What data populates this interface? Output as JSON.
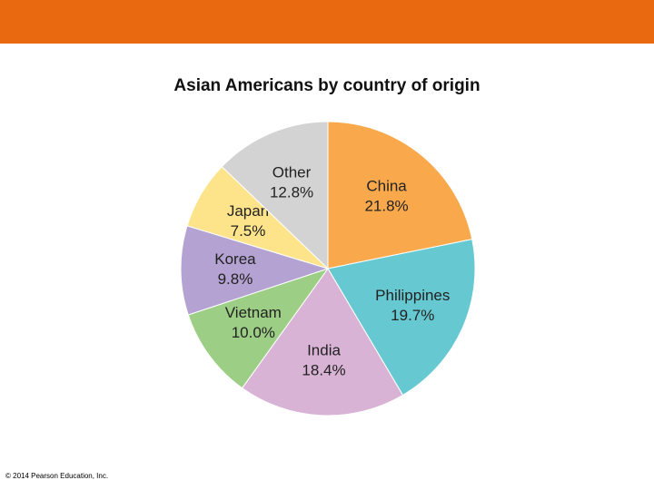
{
  "chart_data": {
    "type": "pie",
    "title": "Asian Americans by country of origin",
    "categories": [
      "China",
      "Philippines",
      "India",
      "Vietnam",
      "Korea",
      "Japan",
      "Other"
    ],
    "values": [
      21.8,
      19.7,
      18.4,
      10.0,
      9.8,
      7.5,
      12.8
    ],
    "value_labels": [
      "21.8%",
      "19.7%",
      "18.4%",
      "10.0%",
      "9.8%",
      "7.5%",
      "12.8%"
    ],
    "colors": [
      "#f9a94b",
      "#66c9d2",
      "#d9b3d6",
      "#9ccf85",
      "#b3a2d2",
      "#fde48a",
      "#d3d3d3"
    ]
  },
  "footer": "© 2014 Pearson Education, Inc."
}
